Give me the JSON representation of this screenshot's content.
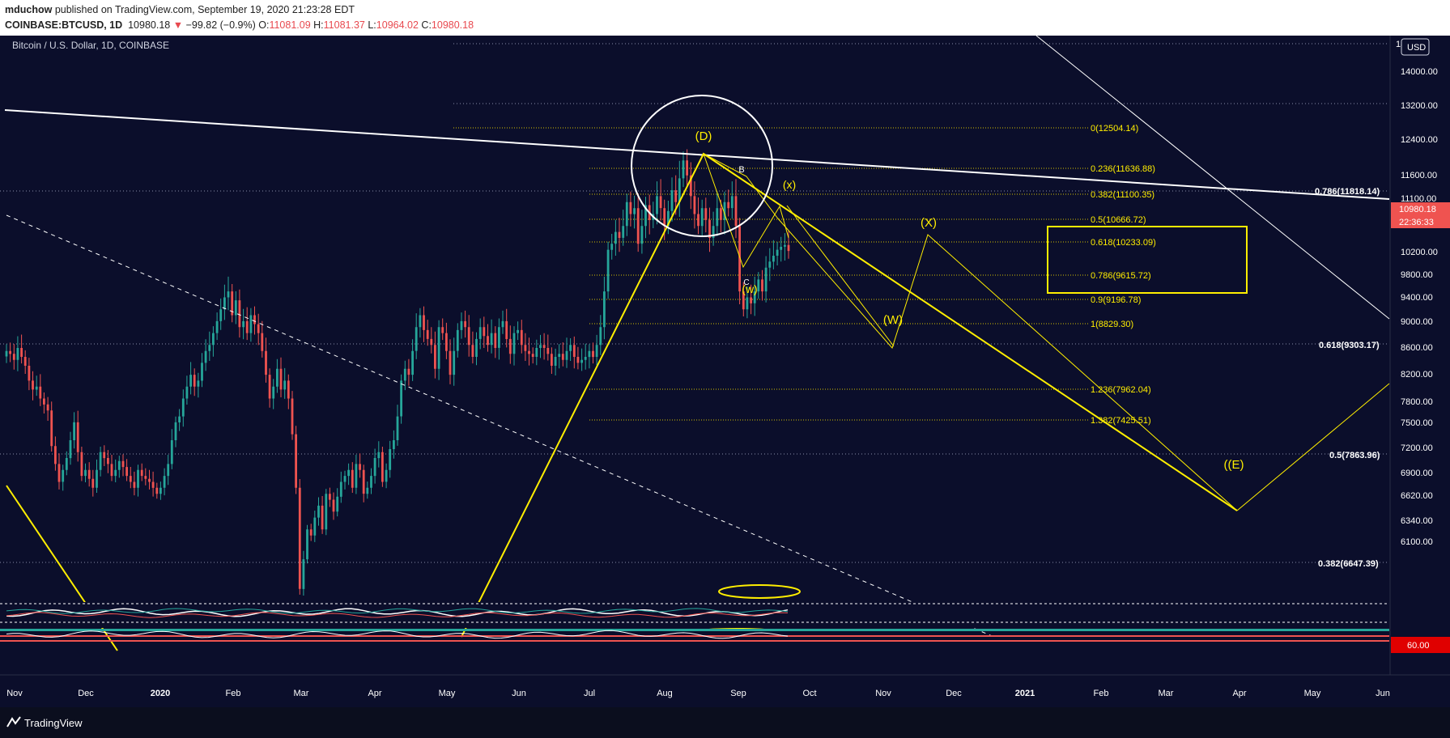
{
  "header": {
    "author": "mduchow",
    "published": "published on TradingView.com, September 19, 2020 21:23:28 EDT",
    "symbol": "COINBASE:BTCUSD, 1D",
    "last": "10980.18",
    "change_arrow": "▼",
    "change": "−99.82 (−0.9%)",
    "o_label": "O:",
    "o": "11081.09",
    "h_label": "H:",
    "h": "11081.37",
    "l_label": "L:",
    "l": "10964.02",
    "c_label": "C:",
    "c": "10980.18"
  },
  "legend": "Bitcoin / U.S. Dollar, 1D, COINBASE",
  "currency_button": "USD",
  "price_badge": "10980.18",
  "countdown_badge": "22:36:33",
  "indicator_badge": "60.00",
  "footer": {
    "brand": "TradingView",
    "logo_icon": "tradingview-logo-icon"
  },
  "colors": {
    "background": "#0b0e2b",
    "up": "#26a69a",
    "down": "#ef5350",
    "annotation": "#ffee00",
    "line": "#ffffff"
  },
  "chart_data": {
    "type": "candlestick",
    "title": "Bitcoin / U.S. Dollar, 1D, COINBASE",
    "x_ticks": [
      "Nov",
      "Dec",
      "2020",
      "Feb",
      "Mar",
      "Apr",
      "May",
      "Jun",
      "Jul",
      "Aug",
      "Sep",
      "Oct",
      "Nov",
      "Dec",
      "2021",
      "Feb",
      "Mar",
      "Apr",
      "May",
      "Jun"
    ],
    "y_ticks": [
      "14000.00",
      "13200.00",
      "12400.00",
      "11600.00",
      "11100.00",
      "10600.00",
      "10200.00",
      "9800.00",
      "9400.00",
      "9000.00",
      "8600.00",
      "8200.00",
      "7800.00",
      "7500.00",
      "7200.00",
      "6900.00",
      "6620.00",
      "6340.00",
      "6100.00"
    ],
    "y_top_label": "14",
    "fib_levels": [
      {
        "label": "0(12504.14)",
        "value": 12504.14
      },
      {
        "label": "0.236(11636.88)",
        "value": 11636.88
      },
      {
        "label": "0.382(11100.35)",
        "value": 11100.35
      },
      {
        "label": "0.5(10666.72)",
        "value": 10666.72
      },
      {
        "label": "0.618(10233.09)",
        "value": 10233.09
      },
      {
        "label": "0.786(9615.72)",
        "value": 9615.72
      },
      {
        "label": "0.9(9196.78)",
        "value": 9196.78
      },
      {
        "label": "1(8829.30)",
        "value": 8829.3
      },
      {
        "label": "1.236(7962.04)",
        "value": 7962.04
      },
      {
        "label": "1.382(7425.51)",
        "value": 7425.51
      }
    ],
    "right_fibs": [
      {
        "label": "0.786(11818.14)",
        "value": 11818.14
      },
      {
        "label": "0.618(9303.17)",
        "value": 9303.17
      },
      {
        "label": "0.5(7863.96)",
        "value": 7863.96
      },
      {
        "label": "0.382(6647.39)",
        "value": 6647.39
      }
    ],
    "wave_labels": [
      "(D)",
      "B",
      "(x)",
      "C",
      "(w)",
      "(X)",
      "(W)",
      "((E)"
    ],
    "closes": [
      9300,
      9250,
      9150,
      9350,
      9200,
      9050,
      8800,
      8650,
      8700,
      8500,
      8400,
      8300,
      7700,
      7400,
      7100,
      7300,
      7500,
      7800,
      8100,
      7600,
      7200,
      7300,
      7150,
      7000,
      7300,
      7600,
      7500,
      7400,
      7200,
      7300,
      7450,
      7350,
      7200,
      7100,
      7000,
      7300,
      7200,
      7150,
      7100,
      7000,
      6900,
      7000,
      7200,
      7400,
      7800,
      8100,
      8200,
      8500,
      8700,
      8900,
      8700,
      8800,
      9100,
      9300,
      9400,
      9600,
      9800,
      10000,
      10200,
      10300,
      9900,
      10150,
      9700,
      9800,
      9600,
      9900,
      9750,
      9600,
      9300,
      8900,
      8500,
      8700,
      9000,
      8650,
      8800,
      8500,
      7900,
      7000,
      5300,
      5800,
      6300,
      6200,
      6500,
      6700,
      6300,
      6900,
      6800,
      6600,
      6850,
      7100,
      7200,
      7300,
      7000,
      7400,
      7300,
      6900,
      7000,
      7200,
      7500,
      7600,
      7100,
      7300,
      7650,
      7800,
      8200,
      8800,
      9000,
      8900,
      9300,
      9700,
      9900,
      9650,
      9500,
      9400,
      9000,
      9700,
      9600,
      9300,
      8900,
      9300,
      9650,
      9800,
      9700,
      9400,
      9200,
      9500,
      9700,
      9550,
      9400,
      9600,
      9350,
      9700,
      9800,
      9500,
      9250,
      9600,
      9650,
      9400,
      9300,
      9250,
      9200,
      9350,
      9400,
      9350,
      9250,
      9050,
      9200,
      9250,
      9150,
      9300,
      9400,
      9200,
      9100,
      9150,
      9200,
      9300,
      9200,
      9400,
      9700,
      10300,
      11000,
      11100,
      11300,
      11200,
      11400,
      11800,
      11600,
      11700,
      11100,
      11400,
      11750,
      11500,
      11600,
      11900,
      11700,
      11400,
      11650,
      12000,
      11800,
      12200,
      12500,
      12250,
      11900,
      11600,
      11400,
      11700,
      11500,
      11200,
      11400,
      11700,
      11500,
      11800,
      11700,
      11900,
      11400,
      10300,
      10000,
      10200,
      10100,
      10300,
      10500,
      10300,
      10700,
      10800,
      10900,
      11000,
      11050,
      11080,
      10980
    ]
  }
}
